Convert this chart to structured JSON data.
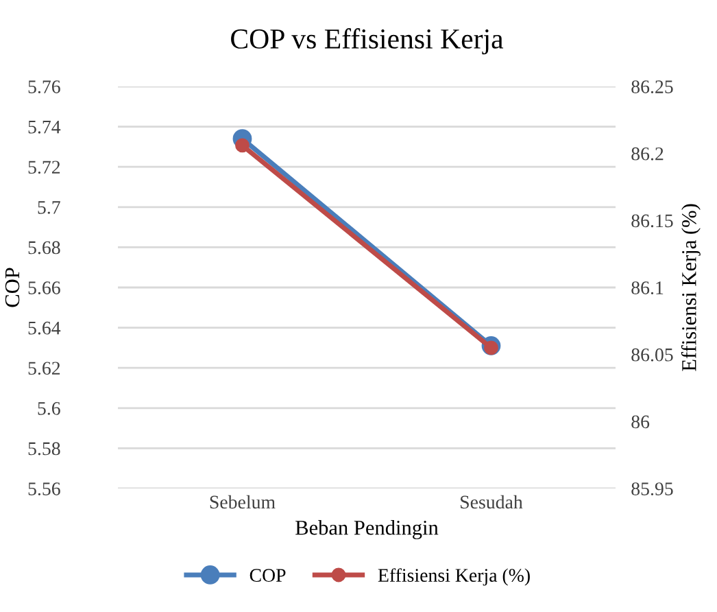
{
  "chart_data": {
    "type": "line",
    "title": "COP vs Effisiensi Kerja",
    "xlabel": "Beban Pendingin",
    "ylabel": "COP",
    "y2label": "Effisiensi Kerja (%)",
    "categories": [
      "Sebelum",
      "Sesudah"
    ],
    "series": [
      {
        "name": "COP",
        "color": "#4a7ebb",
        "values": [
          5.734,
          5.631
        ]
      },
      {
        "name": "Effisiensi Kerja (%)",
        "color": "#be4b48",
        "values": [
          86.206,
          86.055
        ],
        "axis": "y2"
      }
    ],
    "ylim": [
      5.56,
      5.76
    ],
    "yticks": [
      5.56,
      5.58,
      5.6,
      5.62,
      5.64,
      5.66,
      5.68,
      5.7,
      5.72,
      5.74,
      5.76
    ],
    "y2lim": [
      85.95,
      86.25
    ],
    "y2ticks": [
      85.95,
      86,
      86.05,
      86.1,
      86.15,
      86.2,
      86.25
    ],
    "grid": "y",
    "legend": "bottom",
    "marker": "circle",
    "line_style": "solid"
  }
}
